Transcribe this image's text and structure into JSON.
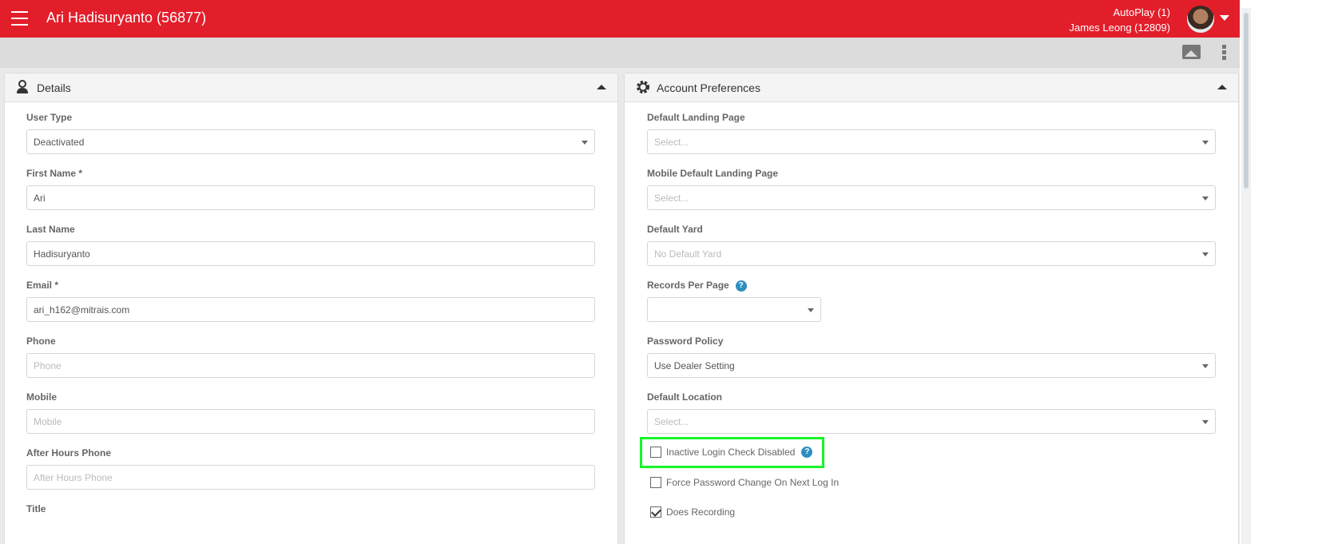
{
  "header": {
    "title": "Ari Hadisuryanto (56877)",
    "company": "AutoPlay (1)",
    "user": "James Leong (12809)"
  },
  "details": {
    "title": "Details",
    "fields": [
      {
        "label": "User Type",
        "value": "Deactivated",
        "placeholder": "",
        "select": true
      },
      {
        "label": "First Name *",
        "value": "Ari",
        "placeholder": ""
      },
      {
        "label": "Last Name",
        "value": "Hadisuryanto",
        "placeholder": ""
      },
      {
        "label": "Email *",
        "value": "ari_h162@mitrais.com",
        "placeholder": ""
      },
      {
        "label": "Phone",
        "value": "",
        "placeholder": "Phone"
      },
      {
        "label": "Mobile",
        "value": "",
        "placeholder": "Mobile"
      },
      {
        "label": "After Hours Phone",
        "value": "",
        "placeholder": "After Hours Phone"
      },
      {
        "label": "Title",
        "value": "",
        "placeholder": ""
      }
    ]
  },
  "prefs": {
    "title": "Account Preferences",
    "fields": [
      {
        "label": "Default Landing Page",
        "value": "",
        "placeholder": "Select..."
      },
      {
        "label": "Mobile Default Landing Page",
        "value": "",
        "placeholder": "Select..."
      },
      {
        "label": "Default Yard",
        "value": "",
        "placeholder": "No Default Yard"
      },
      {
        "label": "Records Per Page",
        "value": "",
        "placeholder": "",
        "help": true
      },
      {
        "label": "Password Policy",
        "value": "Use Dealer Setting",
        "placeholder": ""
      },
      {
        "label": "Default Location",
        "value": "",
        "placeholder": "Select..."
      }
    ],
    "checkboxes": [
      {
        "label": "Inactive Login Check Disabled",
        "checked": false,
        "help": true
      },
      {
        "label": "Force Password Change On Next Log In",
        "checked": false
      },
      {
        "label": "Does Recording",
        "checked": true
      }
    ]
  },
  "help_glyph": "?"
}
